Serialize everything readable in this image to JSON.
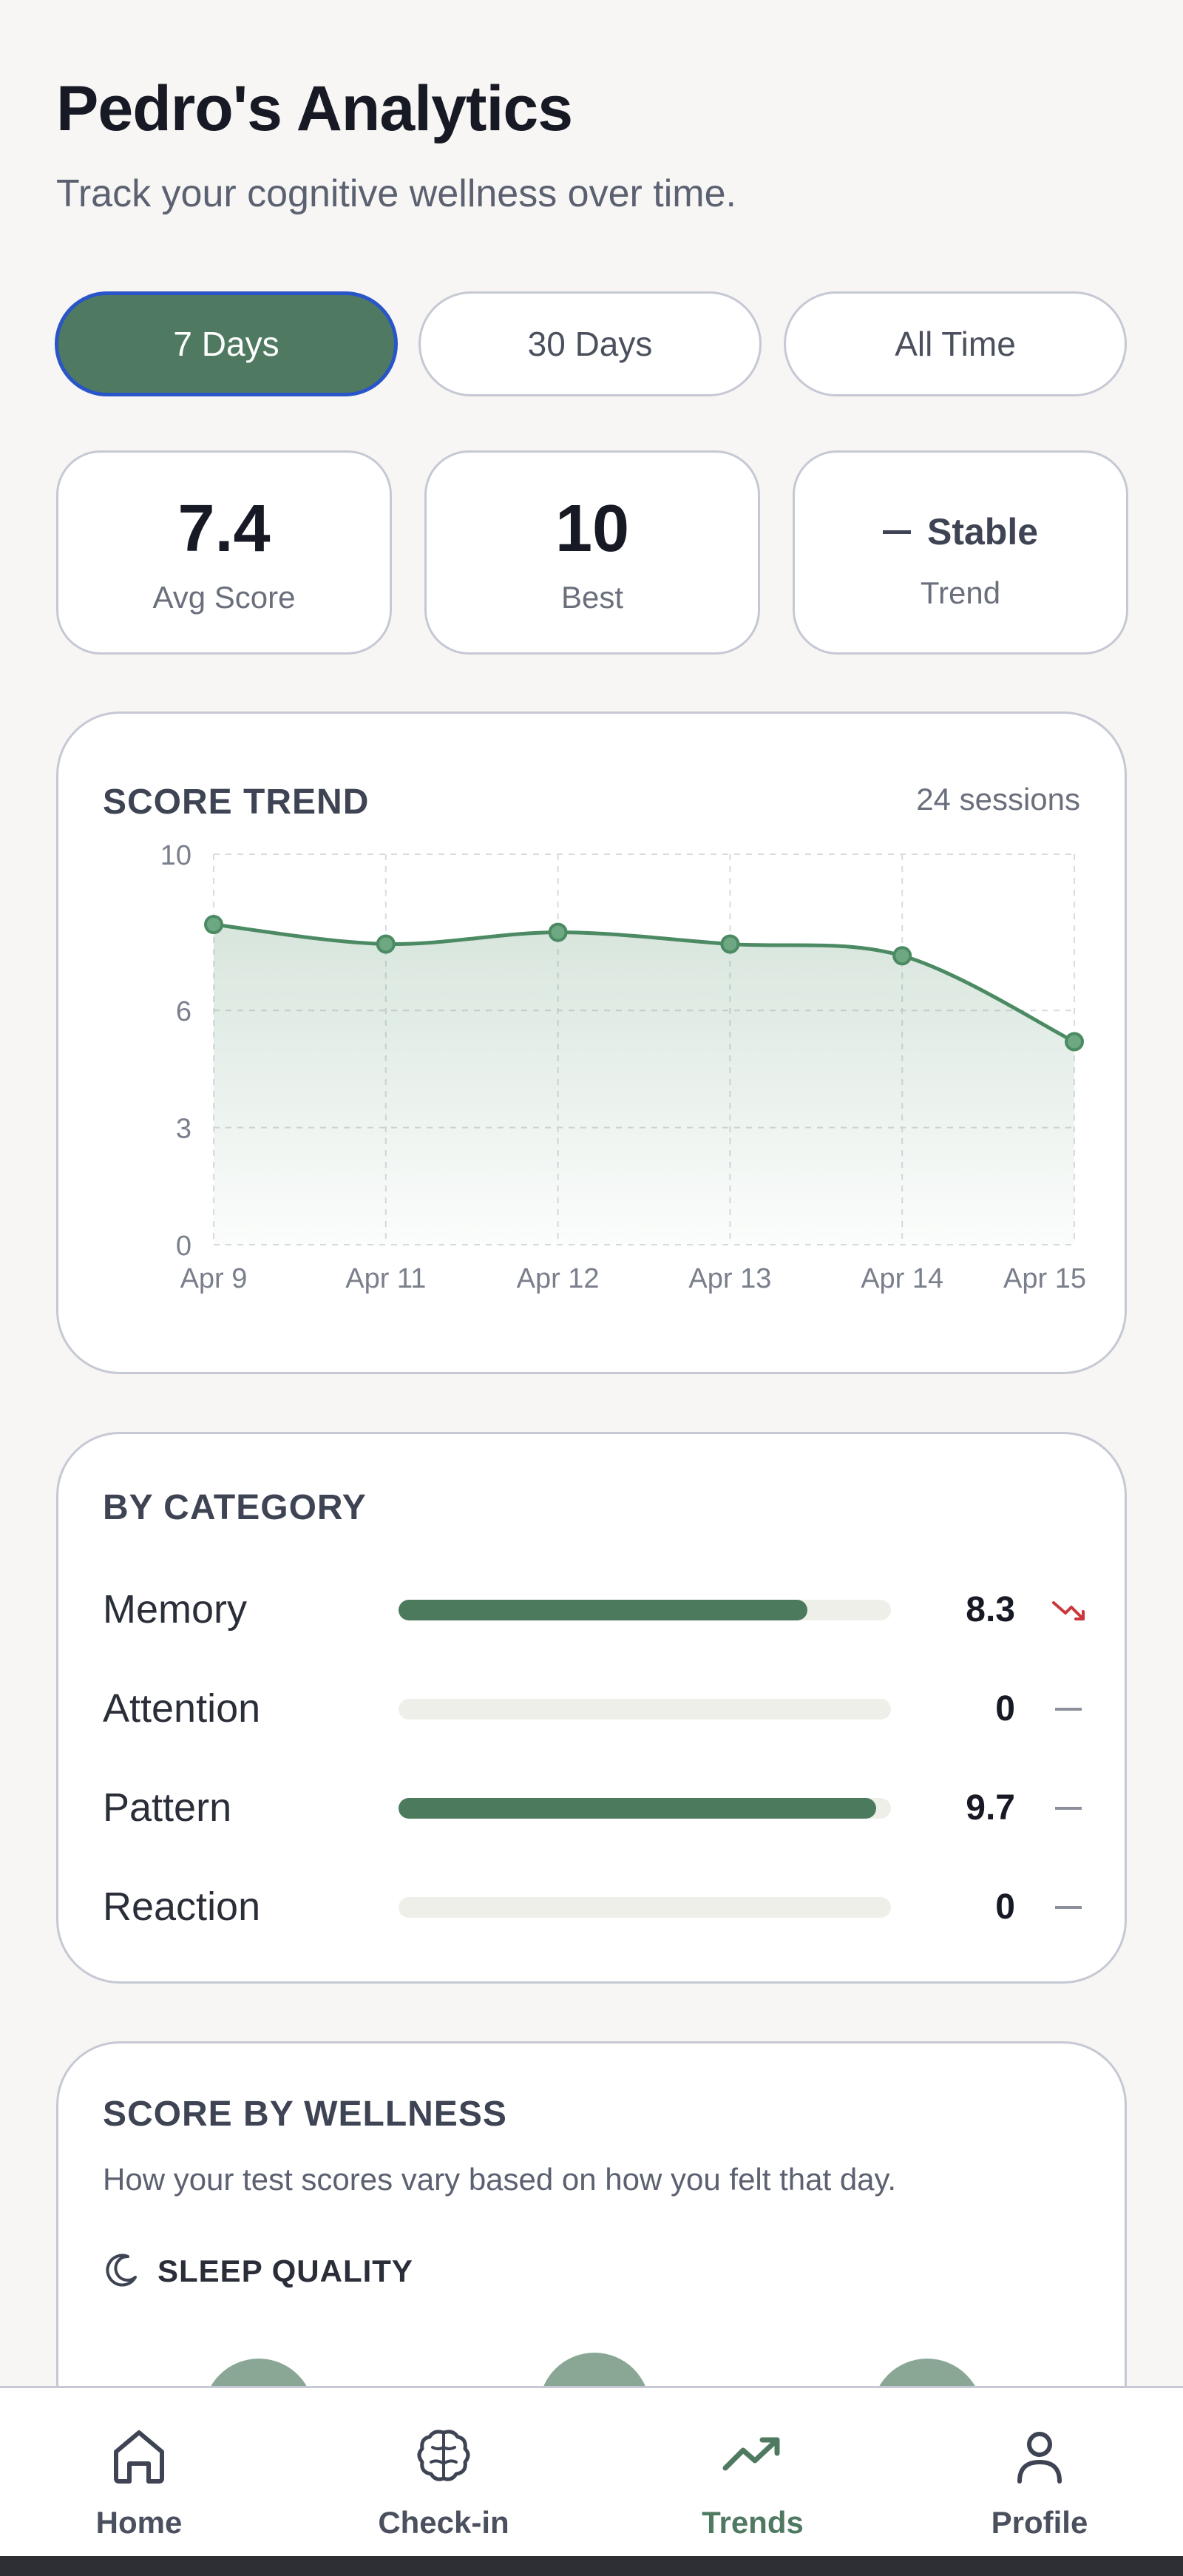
{
  "header": {
    "title": "Pedro's Analytics",
    "subtitle": "Track your cognitive wellness over time."
  },
  "range_tabs": [
    {
      "label": "7 Days",
      "active": true
    },
    {
      "label": "30 Days",
      "active": false
    },
    {
      "label": "All Time",
      "active": false
    }
  ],
  "stats": {
    "avg_score": {
      "value": "7.4",
      "label": "Avg Score"
    },
    "best": {
      "value": "10",
      "label": "Best"
    },
    "trend": {
      "value": "Stable",
      "label": "Trend",
      "icon": "dash-icon"
    }
  },
  "score_trend": {
    "title": "SCORE TREND",
    "sessions": "24 sessions"
  },
  "chart_data": {
    "type": "line",
    "title": "SCORE TREND",
    "x": [
      "Apr 9",
      "Apr 11",
      "Apr 12",
      "Apr 13",
      "Apr 14",
      "Apr 15"
    ],
    "values": [
      8.2,
      7.7,
      8.0,
      7.7,
      7.4,
      5.2
    ],
    "y_ticks": [
      0,
      3,
      6,
      10
    ],
    "ylim": [
      0,
      10
    ],
    "grid": true,
    "line_color": "#4b8a62",
    "area_fill": true
  },
  "by_category": {
    "title": "BY CATEGORY",
    "items": [
      {
        "name": "Memory",
        "score": "8.3",
        "fraction": 0.83,
        "trend": "down"
      },
      {
        "name": "Attention",
        "score": "0",
        "fraction": 0.0,
        "trend": "flat"
      },
      {
        "name": "Pattern",
        "score": "9.7",
        "fraction": 0.97,
        "trend": "flat"
      },
      {
        "name": "Reaction",
        "score": "0",
        "fraction": 0.0,
        "trend": "flat"
      }
    ]
  },
  "wellness": {
    "title": "SCORE BY WELLNESS",
    "subtitle": "How your test scores vary based on how you felt that day.",
    "sleep_label": "SLEEP QUALITY",
    "sleep_icon": "moon-icon"
  },
  "nav": [
    {
      "label": "Home",
      "icon": "home-icon",
      "active": false
    },
    {
      "label": "Check-in",
      "icon": "brain-icon",
      "active": false
    },
    {
      "label": "Trends",
      "icon": "trending-up-icon",
      "active": true
    },
    {
      "label": "Profile",
      "icon": "user-icon",
      "active": false
    }
  ],
  "colors": {
    "accent": "#4f7a61",
    "active_border": "#2a55c9",
    "trend_down": "#c9383a",
    "background": "#f7f6f4"
  }
}
